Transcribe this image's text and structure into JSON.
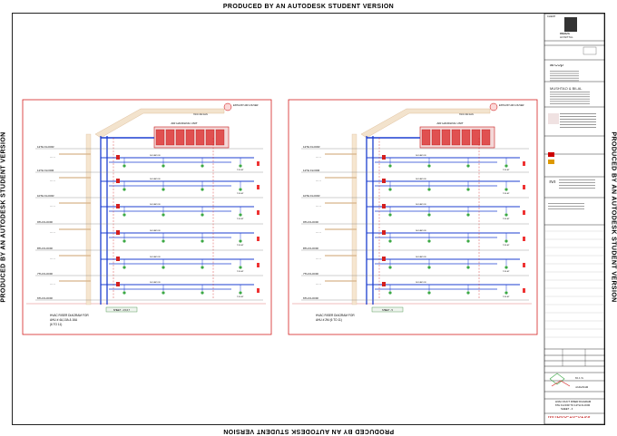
{
  "watermark": "PRODUCED BY AN AUTODESK STUDENT VERSION",
  "diagram_text": {
    "trio_fan": "TRIO 300 FAN",
    "exhaust_air_louver": "EXHAUST AIR LOUVER",
    "ahu_label": "AIR HANDLING UNIT",
    "floors": [
      "12TH FLOOR",
      "11TH FLOOR",
      "10TH FLOOR",
      "9TH FLOOR",
      "8TH FLOOR",
      "7TH FLOOR",
      "6TH FLOOR"
    ],
    "isolation": "ISOLATION",
    "toilet": "TOILET"
  },
  "panels": [
    {
      "sheet_tag": "SHEET - 4,5,6,7",
      "caption": [
        "HVAC RISER DIAGRAM FOR",
        "AHU # 4A,10A & 16A",
        "(6 TO 11)"
      ]
    },
    {
      "sheet_tag": "SHEET - 5",
      "caption": [
        "HVAC RISER DIAGRAM FOR",
        "AHU # 2M (6 TO 11)"
      ]
    }
  ],
  "title_block": {
    "client_label": "CLIENT",
    "client_logo_text": "INDUS",
    "client_logo_sub": "HOSPITAL",
    "architect_name": "arcop",
    "mep_name": "MUSHTAQ & BILAL",
    "consultant_logo": "M",
    "scale": "N.T.S",
    "date": "1/3/2018",
    "drawing_title": [
      "HVAC DUCT RISER DIAGRAM",
      "6TH FLOOR TO 12TH FLOOR",
      "SHEET - 4"
    ],
    "drawing_number": "MHB06-10-0199"
  }
}
